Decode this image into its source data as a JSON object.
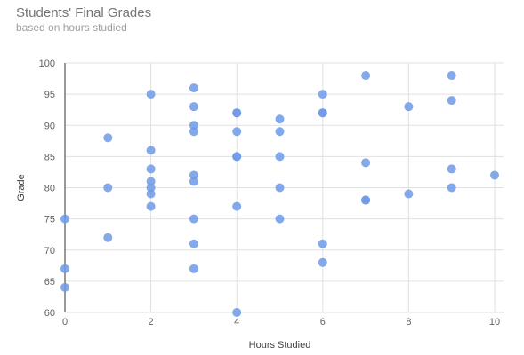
{
  "chart_data": {
    "type": "scatter",
    "title": "Students' Final Grades",
    "subtitle": "based on hours studied",
    "xlabel": "Hours Studied",
    "ylabel": "Grade",
    "xlim": [
      0,
      10
    ],
    "ylim": [
      60,
      100
    ],
    "xticks": [
      0,
      2,
      4,
      6,
      8,
      10
    ],
    "yticks": [
      60,
      65,
      70,
      75,
      80,
      85,
      90,
      95,
      100
    ],
    "grid": true,
    "legend": "none",
    "color": "#6f9ae8",
    "points": [
      {
        "x": 0,
        "y": 75
      },
      {
        "x": 0,
        "y": 67
      },
      {
        "x": 0,
        "y": 64
      },
      {
        "x": 1,
        "y": 88
      },
      {
        "x": 1,
        "y": 80
      },
      {
        "x": 1,
        "y": 72
      },
      {
        "x": 2,
        "y": 95
      },
      {
        "x": 2,
        "y": 86
      },
      {
        "x": 2,
        "y": 83
      },
      {
        "x": 2,
        "y": 81
      },
      {
        "x": 2,
        "y": 80
      },
      {
        "x": 2,
        "y": 79
      },
      {
        "x": 2,
        "y": 77
      },
      {
        "x": 3,
        "y": 96
      },
      {
        "x": 3,
        "y": 93
      },
      {
        "x": 3,
        "y": 90
      },
      {
        "x": 3,
        "y": 89
      },
      {
        "x": 3,
        "y": 82
      },
      {
        "x": 3,
        "y": 81
      },
      {
        "x": 3,
        "y": 75
      },
      {
        "x": 3,
        "y": 71
      },
      {
        "x": 3,
        "y": 67
      },
      {
        "x": 4,
        "y": 92
      },
      {
        "x": 4,
        "y": 92
      },
      {
        "x": 4,
        "y": 89
      },
      {
        "x": 4,
        "y": 85
      },
      {
        "x": 4,
        "y": 85
      },
      {
        "x": 4,
        "y": 77
      },
      {
        "x": 4,
        "y": 60
      },
      {
        "x": 5,
        "y": 91
      },
      {
        "x": 5,
        "y": 89
      },
      {
        "x": 5,
        "y": 85
      },
      {
        "x": 5,
        "y": 80
      },
      {
        "x": 5,
        "y": 75
      },
      {
        "x": 6,
        "y": 95
      },
      {
        "x": 6,
        "y": 92
      },
      {
        "x": 6,
        "y": 92
      },
      {
        "x": 6,
        "y": 71
      },
      {
        "x": 6,
        "y": 68
      },
      {
        "x": 7,
        "y": 98
      },
      {
        "x": 7,
        "y": 84
      },
      {
        "x": 7,
        "y": 78
      },
      {
        "x": 7,
        "y": 78
      },
      {
        "x": 8,
        "y": 93
      },
      {
        "x": 8,
        "y": 79
      },
      {
        "x": 9,
        "y": 98
      },
      {
        "x": 9,
        "y": 94
      },
      {
        "x": 9,
        "y": 83
      },
      {
        "x": 9,
        "y": 80
      },
      {
        "x": 10,
        "y": 82
      }
    ]
  }
}
